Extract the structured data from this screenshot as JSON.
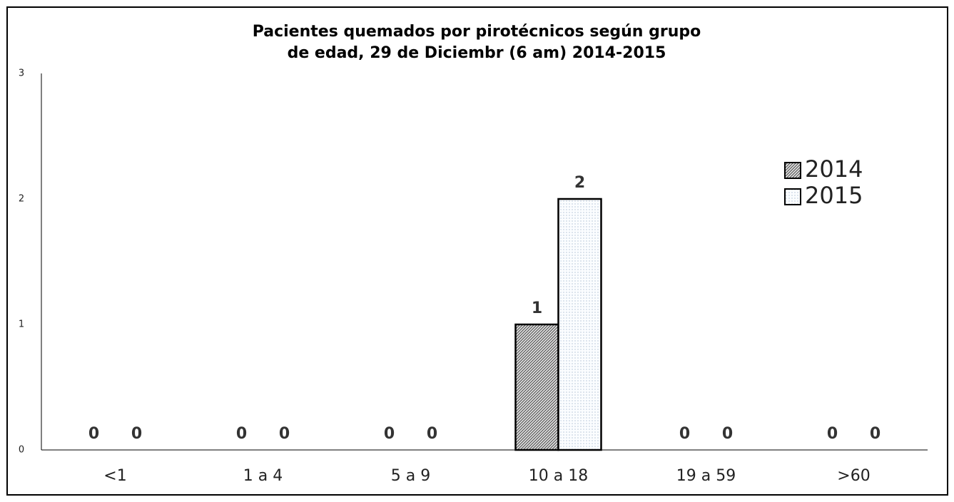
{
  "chart_data": {
    "type": "bar",
    "title": [
      "Pacientes quemados por pirotécnicos según grupo",
      "de edad, 29 de Diciembr (6 am) 2014-2015"
    ],
    "categories": [
      "<1",
      "1 a 4",
      "5 a 9",
      "10 a 18",
      "19 a 59",
      ">60"
    ],
    "series": [
      {
        "name": "2014",
        "color": "#555555",
        "values": [
          0,
          0,
          0,
          1,
          0,
          0
        ]
      },
      {
        "name": "2015",
        "color": "#8fa8c0",
        "values": [
          0,
          0,
          0,
          2,
          0,
          0
        ]
      }
    ],
    "ylim": [
      0,
      3
    ],
    "yticks": [
      0,
      1,
      2,
      3
    ],
    "grid": false,
    "legend": "right"
  }
}
